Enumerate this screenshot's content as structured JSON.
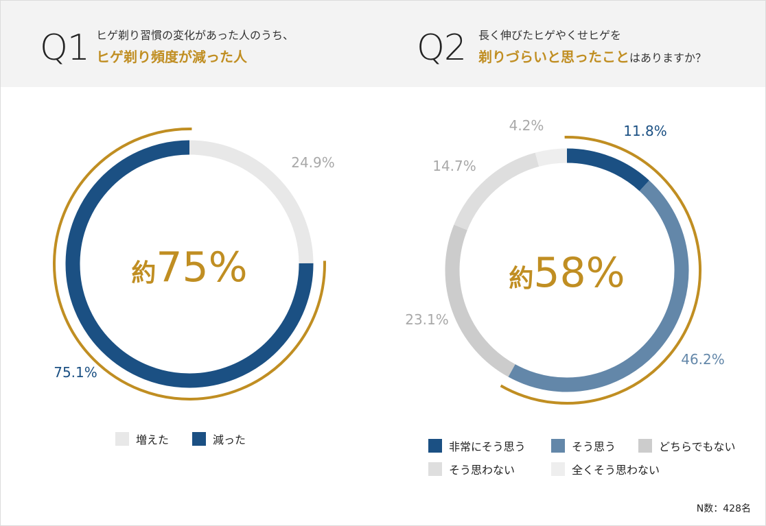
{
  "q1": {
    "num": "Q1",
    "text_line1": "ヒゲ剃り習慣の変化があった人のうち、",
    "text_line2": "ヒゲ剃り頻度が減った人",
    "center_prefix": "約",
    "center_value": "75%"
  },
  "q2": {
    "num": "Q2",
    "text_line1": "長く伸びたヒゲやくせヒゲを",
    "text_line2_highlight": "剃りづらいと思ったこと",
    "text_line2_rest": "はありますか？",
    "center_prefix": "約",
    "center_value": "58%"
  },
  "footnote": "N数：428名",
  "colors": {
    "accent_gold": "#c08e22",
    "navy": "#1b5083",
    "steel_blue": "#6387a9",
    "gray_mid": "#cccccc",
    "gray_light": "#dedede",
    "gray_faint": "#eeeeee",
    "q1_increase": "#e8e8e8"
  },
  "chart_data": [
    {
      "type": "pie",
      "categories": [
        "増えた",
        "減った"
      ],
      "values": [
        24.9,
        75.1
      ],
      "labels": [
        "24.9%",
        "75.1%"
      ],
      "colors": [
        "#e8e8e8",
        "#1b5083"
      ],
      "highlight": [
        "減った"
      ],
      "legend_placement": "bottom",
      "title": "",
      "center_text": "約75%"
    },
    {
      "type": "pie",
      "categories": [
        "非常にそう思う",
        "そう思う",
        "どちらでもない",
        "そう思わない",
        "全くそう思わない"
      ],
      "values": [
        11.8,
        46.2,
        23.1,
        14.7,
        4.2
      ],
      "labels": [
        "11.8%",
        "46.2%",
        "23.1%",
        "14.7%",
        "4.2%"
      ],
      "colors": [
        "#1b5083",
        "#6387a9",
        "#cccccc",
        "#dedede",
        "#eeeeee"
      ],
      "highlight": [
        "非常にそう思う",
        "そう思う"
      ],
      "legend_placement": "bottom",
      "title": "",
      "center_text": "約58%"
    }
  ]
}
